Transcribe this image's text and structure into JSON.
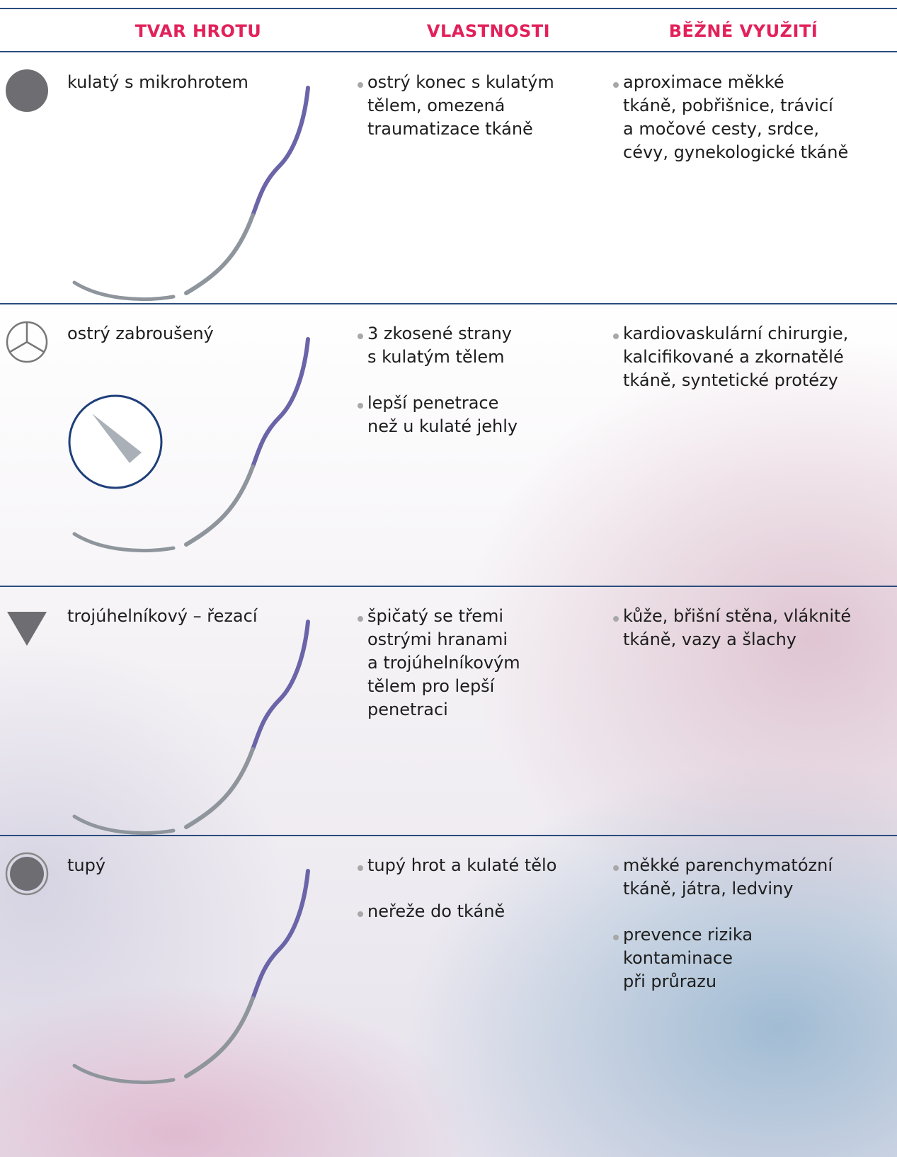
{
  "table": {
    "headers": [
      "TVAR HROTU",
      "VLASTNOSTI",
      "BĚŽNÉ VYUŽITÍ"
    ],
    "rows": [
      {
        "shape": "kulatý s mikrohrotem",
        "properties": [
          "ostrý konec s kulatým\ntělem, omezená\ntraumatizace tkáně"
        ],
        "uses": [
          "aproximace měkké\ntkáně, pobřišnice, trávicí\na močové cesty, srdce,\ncévy, gynekologické tkáně"
        ]
      },
      {
        "shape": "ostrý zabroušený",
        "properties": [
          "3 zkosené strany\ns kulatým tělem",
          "lepší penetrace\nnež u kulaté jehly"
        ],
        "uses": [
          "kardiovaskulární chirurgie,\nkalcifikované a zkornatělé\ntkáně, syntetické protézy"
        ]
      },
      {
        "shape": "trojúhelníkový – řezací",
        "properties": [
          "špičatý se třemi\nostrými hranami\na trojúhelníkovým\ntělem pro lepší\npenetraci"
        ],
        "uses": [
          "kůže, břišní stěna, vláknité\ntkáně, vazy a šlachy"
        ]
      },
      {
        "shape": "tupý",
        "properties": [
          "tupý hrot a kulaté tělo",
          "neřeže do tkáně"
        ],
        "uses": [
          "měkké parenchymatózní\ntkáně, játra, ledviny",
          "prevence rizika\nkontaminace\npři průrazu"
        ]
      }
    ]
  }
}
